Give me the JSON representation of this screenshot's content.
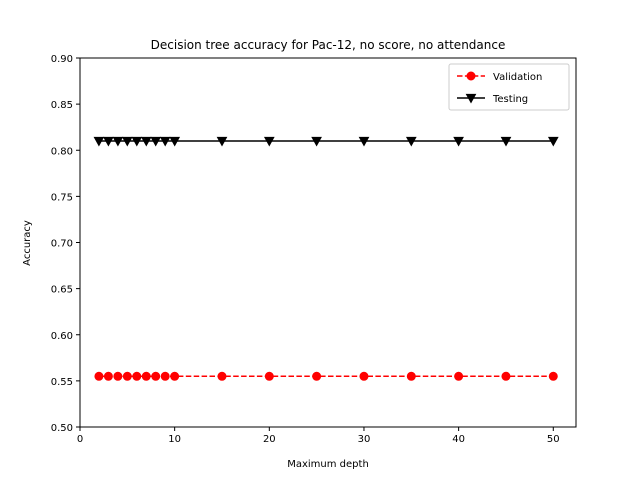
{
  "chart_data": {
    "type": "line",
    "title": "Decision tree accuracy for Pac-12, no score, no attendance",
    "xlabel": "Maximum depth",
    "ylabel": "Accuracy",
    "xlim": [
      0,
      52.4
    ],
    "ylim": [
      0.5,
      0.9
    ],
    "xticks": [
      0,
      10,
      20,
      30,
      40,
      50
    ],
    "yticks": [
      0.5,
      0.55,
      0.6,
      0.65,
      0.7,
      0.75,
      0.8,
      0.85,
      0.9
    ],
    "x": [
      2,
      3,
      4,
      5,
      6,
      7,
      8,
      9,
      10,
      15,
      20,
      25,
      30,
      35,
      40,
      45,
      50
    ],
    "grid": false,
    "legend_position": "top-right",
    "series": [
      {
        "name": "Validation",
        "color": "#ff0000",
        "marker": "circle",
        "line_style": "dashed",
        "values": [
          0.555,
          0.555,
          0.555,
          0.555,
          0.555,
          0.555,
          0.555,
          0.555,
          0.555,
          0.555,
          0.555,
          0.555,
          0.555,
          0.555,
          0.555,
          0.555,
          0.555
        ]
      },
      {
        "name": "Testing",
        "color": "#000000",
        "marker": "triangle-down",
        "line_style": "solid",
        "values": [
          0.81,
          0.81,
          0.81,
          0.81,
          0.81,
          0.81,
          0.81,
          0.81,
          0.81,
          0.81,
          0.81,
          0.81,
          0.81,
          0.81,
          0.81,
          0.81,
          0.81
        ]
      }
    ]
  }
}
